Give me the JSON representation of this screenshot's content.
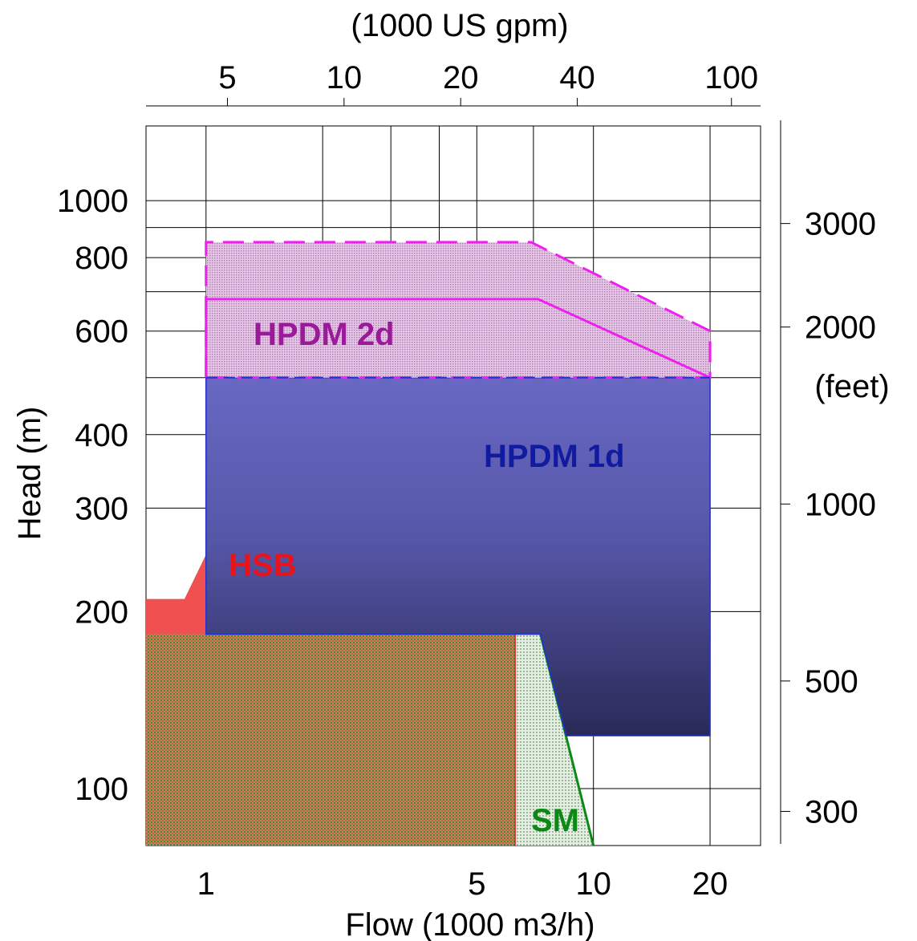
{
  "chart_data": {
    "type": "area",
    "x_axis": {
      "label": "Flow (1000 m3/h)",
      "scale": "log",
      "range": [
        0.7,
        27
      ],
      "ticks": [
        1,
        5,
        10,
        20
      ],
      "tick_labels": [
        "1",
        "5",
        "10",
        "20"
      ],
      "gridlines": [
        1,
        2,
        3,
        4,
        5,
        7,
        10,
        20
      ]
    },
    "x2_axis": {
      "label": "(1000 US gpm)",
      "scale": "log",
      "ticks": [
        5,
        10,
        20,
        40,
        100
      ],
      "tick_labels": [
        "5",
        "10",
        "20",
        "40",
        "100"
      ]
    },
    "y_axis": {
      "label": "Head (m)",
      "scale": "log",
      "range": [
        80,
        1340
      ],
      "ticks": [
        100,
        200,
        300,
        400,
        600,
        800,
        1000
      ],
      "tick_labels": [
        "100",
        "200",
        "300",
        "400",
        "600",
        "800",
        "1000"
      ],
      "gridlines": [
        100,
        200,
        300,
        400,
        500,
        600,
        700,
        800,
        900,
        1000
      ]
    },
    "y2_axis": {
      "label": "(feet)",
      "scale": "log",
      "ticks": [
        300,
        500,
        1000,
        2000,
        3000
      ],
      "tick_labels": [
        "300",
        "500",
        "1000",
        "2000",
        "3000"
      ]
    },
    "grid": true,
    "series": [
      {
        "name": "HPDM 2d",
        "color": "#9a1a9a",
        "polygon": [
          [
            1,
            500
          ],
          [
            1,
            850
          ],
          [
            6.9,
            850
          ],
          [
            20,
            600
          ],
          [
            20,
            500
          ]
        ],
        "inner_line": [
          [
            1,
            500
          ],
          [
            1,
            680
          ],
          [
            7.2,
            680
          ],
          [
            20,
            500
          ]
        ]
      },
      {
        "name": "HPDM 1d",
        "color": "#101ba0",
        "polygon": [
          [
            1,
            500
          ],
          [
            20,
            500
          ],
          [
            20,
            123
          ],
          [
            8.5,
            123
          ],
          [
            7.3,
            183
          ],
          [
            1,
            183
          ]
        ]
      },
      {
        "name": "HSB",
        "color": "#e8141c",
        "polygon": [
          [
            0.7,
            80
          ],
          [
            6.3,
            80
          ],
          [
            6.3,
            183
          ],
          [
            1,
            183
          ],
          [
            1,
            250
          ],
          [
            0.88,
            210
          ],
          [
            0.7,
            210
          ]
        ]
      },
      {
        "name": "SM",
        "color": "#0a8a14",
        "polygon": [
          [
            6.3,
            80
          ],
          [
            10,
            80
          ],
          [
            7.3,
            183
          ],
          [
            6.3,
            183
          ]
        ]
      }
    ]
  }
}
